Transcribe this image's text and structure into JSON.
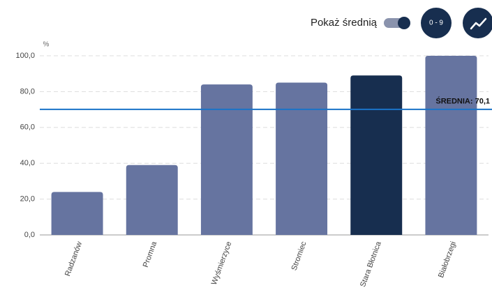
{
  "chart_data": {
    "type": "bar",
    "y_label": "%",
    "categories": [
      "Radzanów",
      "Promna",
      "Wyśmierzyce",
      "Stromiec",
      "Stara Błotnica",
      "Białobrzegi"
    ],
    "values": [
      24,
      39,
      84,
      85,
      89,
      100
    ],
    "colors": [
      "#6674a0",
      "#6674a0",
      "#6674a0",
      "#6674a0",
      "#172e4f",
      "#6674a0"
    ],
    "ylim": [
      0,
      100
    ],
    "yticks": [
      {
        "value": 0,
        "label": "0,0"
      },
      {
        "value": 20,
        "label": "20,0"
      },
      {
        "value": 40,
        "label": "40,0"
      },
      {
        "value": 60,
        "label": "60,0"
      },
      {
        "value": 80,
        "label": "80,0"
      },
      {
        "value": 100,
        "label": "100,0"
      }
    ],
    "grid": true,
    "average_shown": true,
    "average": {
      "label": "ŚREDNIA: 70,1",
      "value": 70.1,
      "color": "#1a73c8"
    },
    "controls": {
      "show_average": "Pokaż średnią",
      "range_button": "0 - 9"
    }
  }
}
